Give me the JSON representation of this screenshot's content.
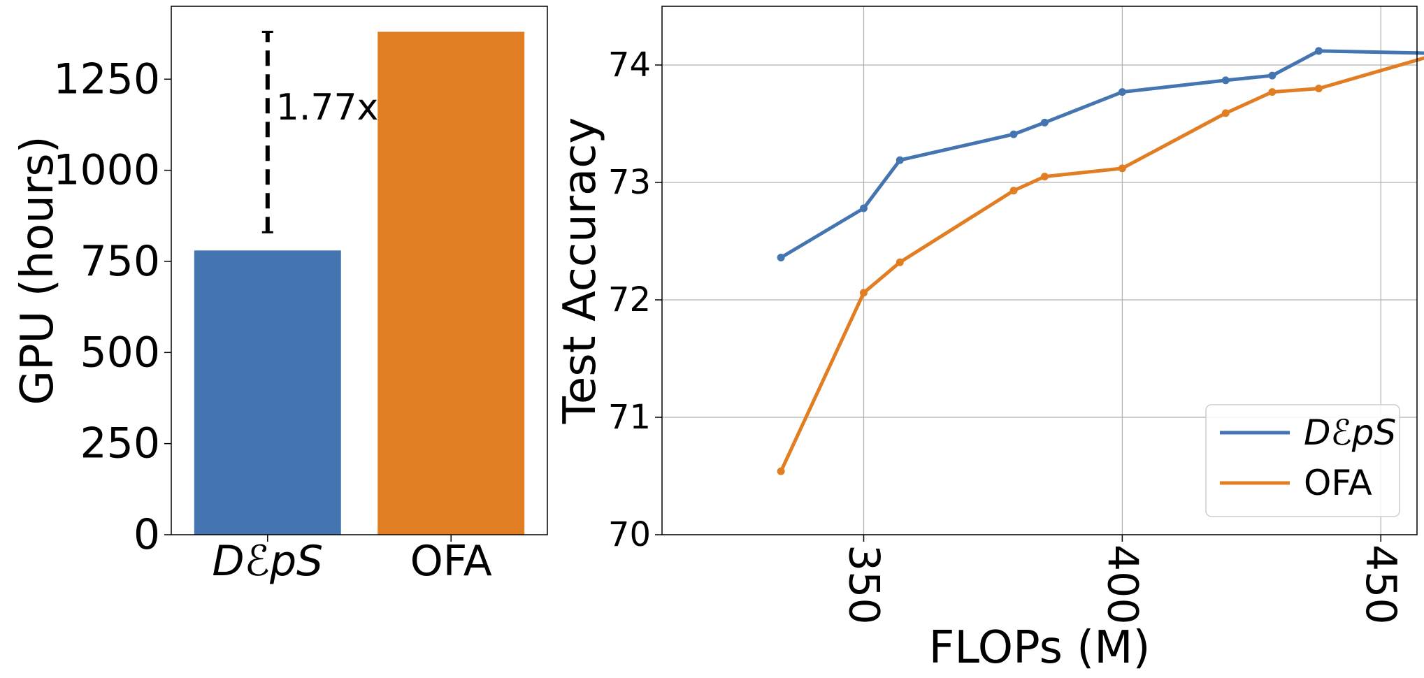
{
  "chart_data": [
    {
      "type": "bar",
      "title": "",
      "xlabel": "",
      "ylabel": "GPU (hours)",
      "ylim": [
        0,
        1450
      ],
      "yticks": [
        0,
        250,
        500,
        750,
        1000,
        1250
      ],
      "categories": [
        "DℰpS",
        "OFA"
      ],
      "values": [
        780,
        1380
      ],
      "colors": [
        "#4575b0",
        "#e17d22"
      ],
      "annotation": {
        "label": "1.77x",
        "from": 830,
        "to": 1380
      },
      "grid": false
    },
    {
      "type": "line",
      "title": "",
      "xlabel": "FLOPs (M)",
      "ylabel": "Test Accuracy",
      "xlim": [
        311,
        457
      ],
      "ylim": [
        70,
        74.5
      ],
      "xticks": [
        350,
        400,
        450
      ],
      "yticks": [
        70,
        71,
        72,
        73,
        74
      ],
      "grid": true,
      "legend_position": "lower-right",
      "series": [
        {
          "name": "DℰpS",
          "color": "#4575b0",
          "x": [
            334,
            350,
            357,
            379,
            385,
            400,
            420,
            429,
            438,
            460
          ],
          "y": [
            72.36,
            72.78,
            73.19,
            73.41,
            73.51,
            73.77,
            73.87,
            73.91,
            74.12,
            74.1
          ]
        },
        {
          "name": "OFA",
          "color": "#e17d22",
          "x": [
            334,
            350,
            357,
            379,
            385,
            400,
            420,
            429,
            438,
            460
          ],
          "y": [
            70.54,
            72.06,
            72.32,
            72.93,
            73.05,
            73.12,
            73.59,
            73.77,
            73.8,
            74.08
          ]
        }
      ]
    }
  ]
}
